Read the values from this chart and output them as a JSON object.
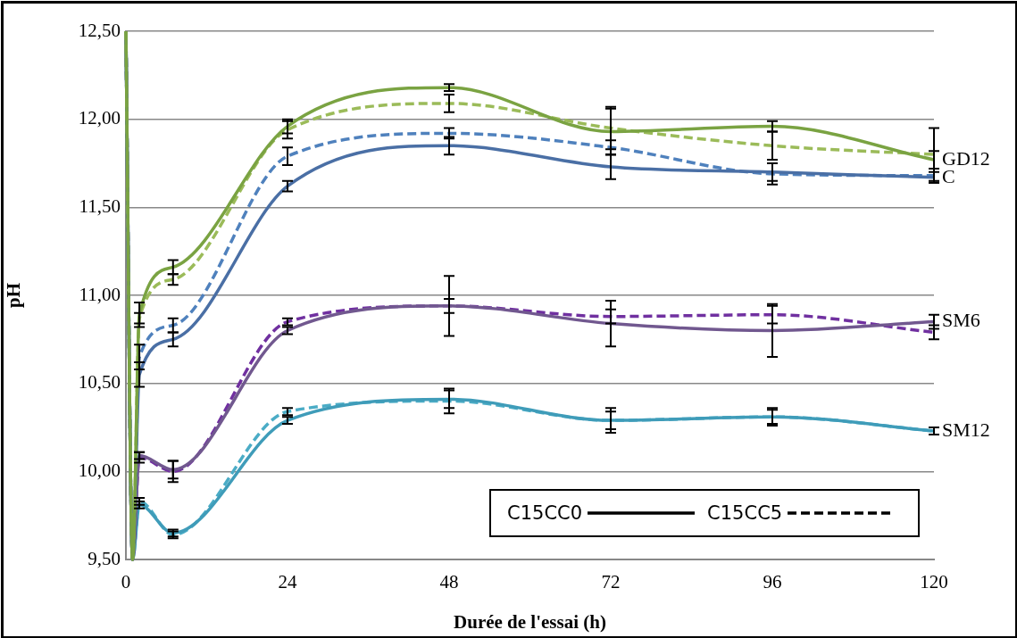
{
  "chart_data": {
    "type": "line",
    "xlabel": "Durée de l'essai (h)",
    "ylabel": "pH",
    "x": [
      0,
      1,
      2,
      7,
      24,
      48,
      72,
      96,
      120
    ],
    "xlim": [
      0,
      120
    ],
    "xticks": [
      0,
      24,
      48,
      72,
      96,
      120
    ],
    "ylim": [
      9.5,
      12.5
    ],
    "yticks": [
      {
        "value": 9.5,
        "label": "9,50"
      },
      {
        "value": 10,
        "label": "10,00"
      },
      {
        "value": 10.5,
        "label": "10,50"
      },
      {
        "value": 11,
        "label": "11,00"
      },
      {
        "value": 11.5,
        "label": "11,50"
      },
      {
        "value": 12,
        "label": "12,00"
      },
      {
        "value": 12.5,
        "label": "12,50"
      }
    ],
    "grid": "y",
    "legend": false,
    "annotations": [
      "C15CC0",
      "C15CC5"
    ],
    "series": [
      {
        "name": "GD12",
        "color": "#7aa342",
        "line_style": "solid",
        "values": [
          12.5,
          9.5,
          10.89,
          11.16,
          11.96,
          12.18,
          11.93,
          11.96,
          11.77
        ],
        "errors": [
          null,
          null,
          0.07,
          0.04,
          0.04,
          0.02,
          0.13,
          0.03,
          0.05
        ]
      },
      {
        "color": "#9bbb59",
        "line_style": "dashed",
        "values": [
          12.5,
          9.5,
          10.87,
          11.09,
          11.94,
          12.09,
          11.95,
          11.85,
          11.8
        ],
        "errors": [
          null,
          null,
          0.03,
          0.03,
          0.05,
          0.05,
          0.12,
          0.08,
          0.15
        ]
      },
      {
        "name": "C",
        "color": "#4a6fa5",
        "line_style": "solid",
        "values": [
          12.5,
          9.5,
          10.55,
          10.75,
          11.62,
          11.85,
          11.73,
          11.7,
          11.67
        ],
        "errors": [
          null,
          null,
          0.07,
          0.04,
          0.03,
          0.05,
          0.07,
          0.05,
          0.03
        ]
      },
      {
        "color": "#4f81bd",
        "line_style": "dashed",
        "values": [
          12.5,
          9.5,
          10.65,
          10.83,
          11.79,
          11.92,
          11.84,
          11.69,
          11.68
        ],
        "errors": [
          null,
          null,
          0.07,
          0.04,
          0.05,
          0.03,
          0.04,
          0.06,
          0.04
        ]
      },
      {
        "name": "SM6",
        "color": "#71588f",
        "line_style": "solid",
        "values": [
          12.5,
          9.5,
          10.09,
          10.01,
          10.8,
          10.94,
          10.84,
          10.8,
          10.85
        ],
        "errors": [
          null,
          null,
          0.02,
          0.05,
          0.02,
          0.17,
          0.13,
          0.15,
          0.04
        ]
      },
      {
        "color": "#7030a0",
        "line_style": "dashed",
        "values": [
          12.5,
          9.5,
          10.08,
          10.0,
          10.85,
          10.94,
          10.88,
          10.89,
          10.79
        ],
        "errors": [
          null,
          null,
          0.03,
          0.06,
          0.02,
          0.04,
          0.04,
          0.05,
          0.04
        ]
      },
      {
        "name": "SM12",
        "color": "#3f9cb9",
        "line_style": "solid",
        "values": [
          12.5,
          9.5,
          9.81,
          9.65,
          10.29,
          10.41,
          10.29,
          10.31,
          10.23
        ],
        "errors": [
          null,
          null,
          0.02,
          0.02,
          0.02,
          0.05,
          0.07,
          0.05,
          0.02
        ]
      },
      {
        "color": "#4bacc6",
        "line_style": "dashed",
        "values": [
          12.5,
          9.5,
          9.83,
          9.64,
          10.34,
          10.4,
          10.29,
          10.31,
          10.23
        ],
        "errors": [
          null,
          null,
          0.02,
          0.02,
          0.02,
          0.07,
          0.05,
          0.04,
          0.02
        ]
      }
    ]
  }
}
